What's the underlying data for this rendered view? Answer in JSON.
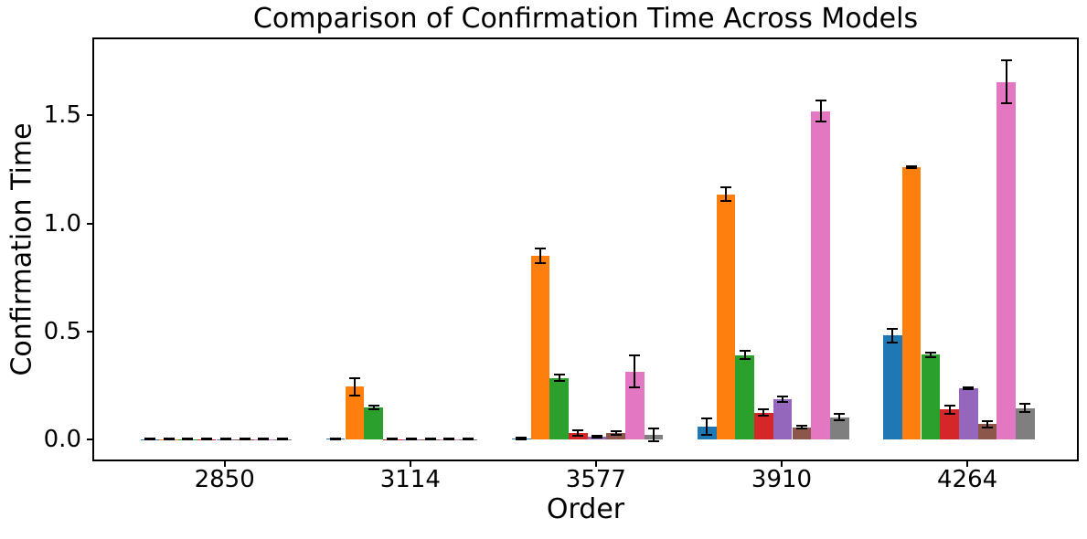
{
  "figure": {
    "background": "#ffffff",
    "axes_color": "#000000"
  },
  "chart_data": {
    "type": "bar",
    "title": "Comparison of Confirmation Time Across Models",
    "xlabel": "Order",
    "ylabel": "Confirmation Time",
    "categories": [
      "2850",
      "3114",
      "3577",
      "3910",
      "4264"
    ],
    "ytick_labels": [
      "0.0",
      "0.5",
      "1.0",
      "1.5"
    ],
    "ylim": [
      -0.093,
      1.852
    ],
    "grid": false,
    "legend": "none",
    "error_bars": true,
    "series": [
      {
        "name": "blue",
        "color": "#1f77b4",
        "values": [
          0.002,
          0.003,
          0.004,
          0.058,
          0.48
        ],
        "errors": [
          0.002,
          0.002,
          0.003,
          0.038,
          0.03
        ]
      },
      {
        "name": "orange",
        "color": "#ff7f0e",
        "values": [
          0.002,
          0.245,
          0.85,
          1.135,
          1.26
        ],
        "errors": [
          0.002,
          0.04,
          0.035,
          0.032,
          0.006
        ]
      },
      {
        "name": "green",
        "color": "#2ca02c",
        "values": [
          0.002,
          0.148,
          0.285,
          0.39,
          0.392
        ],
        "errors": [
          0.002,
          0.008,
          0.015,
          0.02,
          0.01
        ]
      },
      {
        "name": "red",
        "color": "#d62728",
        "values": [
          0.002,
          0.002,
          0.03,
          0.124,
          0.138
        ],
        "errors": [
          0.002,
          0.002,
          0.012,
          0.015,
          0.018
        ]
      },
      {
        "name": "purple",
        "color": "#9467bd",
        "values": [
          0.002,
          0.002,
          0.012,
          0.185,
          0.237
        ],
        "errors": [
          0.002,
          0.002,
          0.004,
          0.012,
          0.006
        ]
      },
      {
        "name": "brown",
        "color": "#8c564b",
        "values": [
          0.002,
          0.002,
          0.028,
          0.056,
          0.07
        ],
        "errors": [
          0.002,
          0.002,
          0.008,
          0.006,
          0.014
        ]
      },
      {
        "name": "pink",
        "color": "#e377c2",
        "values": [
          0.002,
          0.002,
          0.315,
          1.52,
          1.655
        ],
        "errors": [
          0.002,
          0.002,
          0.072,
          0.047,
          0.1
        ]
      },
      {
        "name": "gray",
        "color": "#7f7f7f",
        "values": [
          0.002,
          0.002,
          0.022,
          0.103,
          0.145
        ],
        "errors": [
          0.002,
          0.002,
          0.03,
          0.014,
          0.018
        ]
      }
    ]
  }
}
